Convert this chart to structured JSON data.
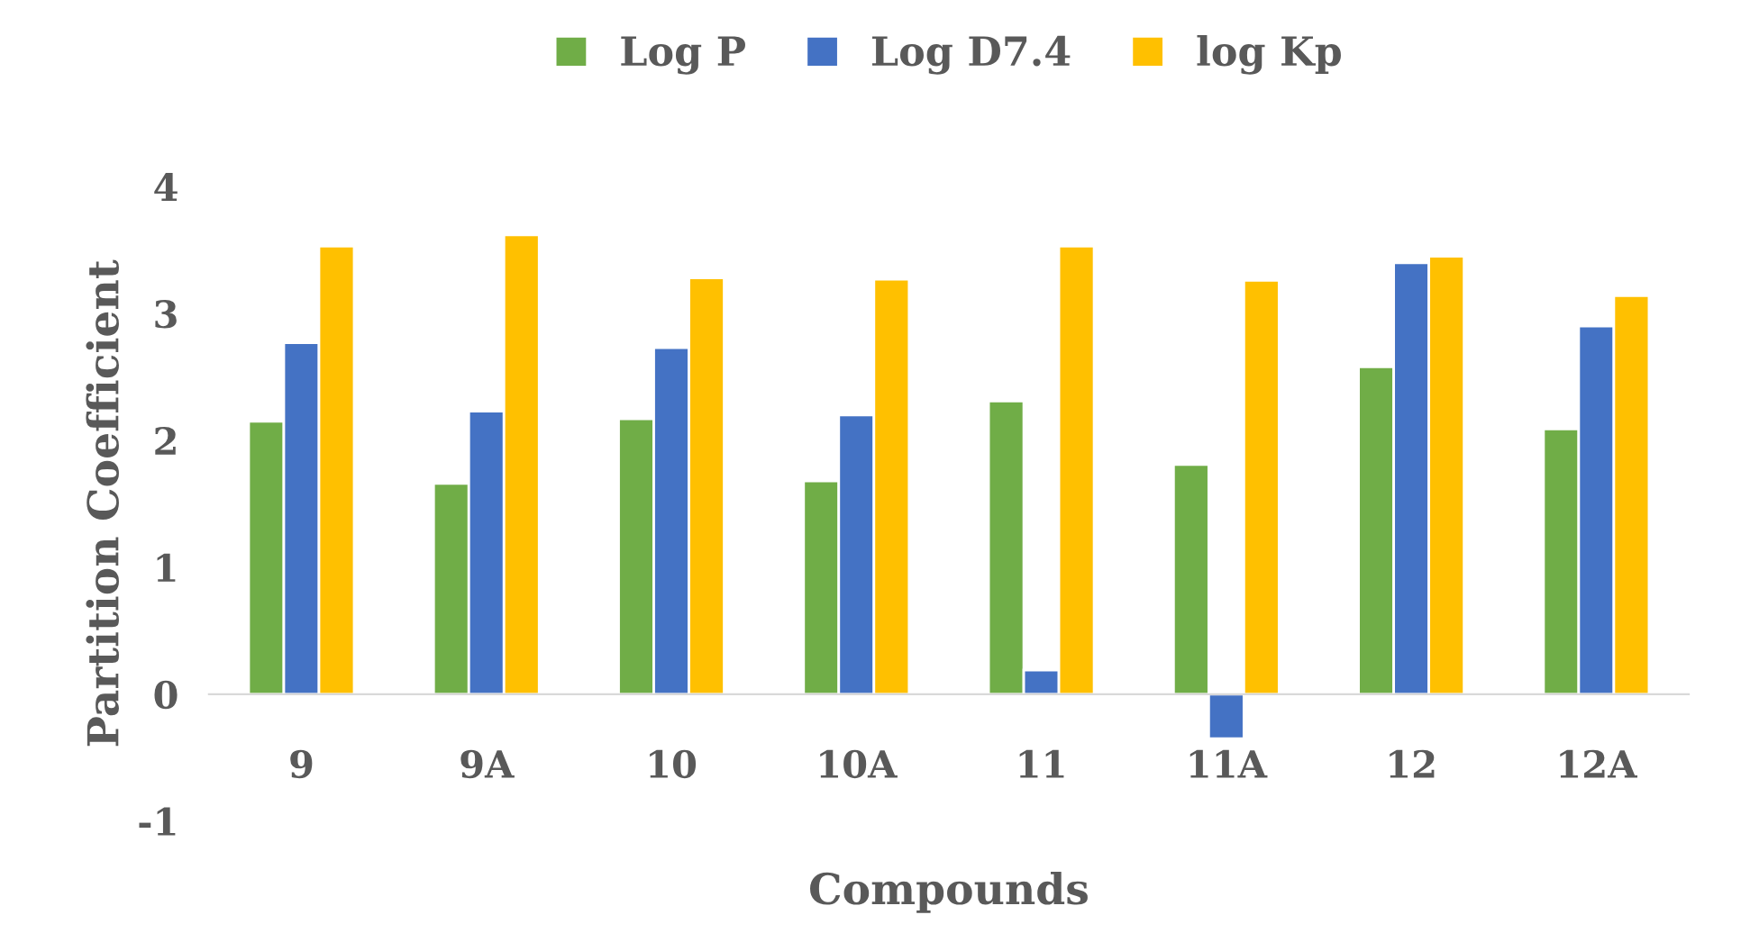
{
  "chart_data": {
    "type": "bar",
    "xlabel": "Compounds",
    "ylabel": "Partition Coefficient",
    "categories": [
      "9",
      "9A",
      "10",
      "10A",
      "11",
      "11A",
      "12",
      "12A"
    ],
    "series": [
      {
        "name": "Log P",
        "color": "#70ad47",
        "values": [
          2.15,
          1.66,
          2.17,
          1.68,
          2.31,
          1.81,
          2.58,
          2.09
        ]
      },
      {
        "name": "Log D7.4",
        "color": "#4472c4",
        "values": [
          2.77,
          2.23,
          2.73,
          2.2,
          0.19,
          -0.35,
          3.4,
          2.9
        ]
      },
      {
        "name": "log Kp",
        "color": "#ffc000",
        "values": [
          3.53,
          3.62,
          3.28,
          3.27,
          3.53,
          3.26,
          3.45,
          3.14
        ]
      }
    ],
    "ylim": [
      -1,
      4
    ],
    "yticks": [
      -1,
      0,
      1,
      2,
      3,
      4
    ],
    "grid": false,
    "legend": "top"
  }
}
